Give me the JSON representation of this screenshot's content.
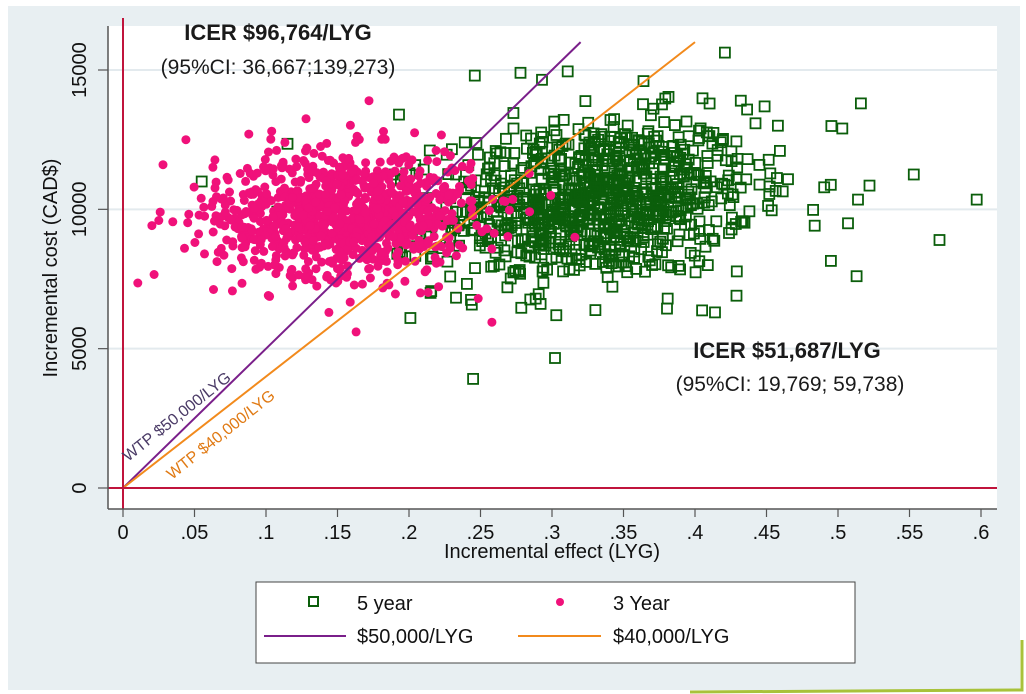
{
  "chart_data": {
    "type": "scatter",
    "title": "",
    "xlabel": "Incremental effect (LYG)",
    "ylabel": "Incremental cost (CAD$)",
    "xlim": [
      -0.01,
      0.61
    ],
    "ylim": [
      -800,
      16300
    ],
    "x_ticks": [
      0,
      0.05,
      0.1,
      0.15,
      0.2,
      0.25,
      0.3,
      0.35,
      0.4,
      0.45,
      0.5,
      0.55,
      0.6
    ],
    "x_tick_labels": [
      "0",
      ".05",
      ".1",
      ".15",
      ".2",
      ".25",
      ".3",
      ".35",
      ".4",
      ".45",
      ".5",
      ".55",
      ".6"
    ],
    "y_ticks": [
      0,
      5000,
      10000,
      15000
    ],
    "y_tick_labels": [
      "0",
      "5000",
      "10000",
      "15000"
    ],
    "grid": "horizontal",
    "reference_lines": {
      "x0": 0,
      "y0": 0,
      "color": "#c0143c"
    },
    "colors": {
      "five_year": "#0b5e0b",
      "three_year": "#f0117a",
      "wtp50": "#7a1f8a",
      "wtp40": "#f28a1c",
      "outer_bg": "#e8eff2",
      "plot_bg": "#ffffff",
      "axis": "#555555",
      "footer_accent": "#a8c23a"
    },
    "series": [
      {
        "name": "5 year",
        "marker": "hollow-square",
        "distribution": {
          "mean_x": 0.33,
          "mean_y": 10300,
          "sd_x": 0.055,
          "sd_y": 1450,
          "corr": 0.18,
          "n": 1000
        },
        "outliers": [
          {
            "x": 0.597,
            "y": 10350
          },
          {
            "x": 0.571,
            "y": 8900
          },
          {
            "x": 0.553,
            "y": 11250
          },
          {
            "x": 0.522,
            "y": 10850
          },
          {
            "x": 0.516,
            "y": 13800
          },
          {
            "x": 0.514,
            "y": 10350
          },
          {
            "x": 0.507,
            "y": 9500
          },
          {
            "x": 0.503,
            "y": 12900
          },
          {
            "x": 0.495,
            "y": 8150
          },
          {
            "x": 0.513,
            "y": 7600
          },
          {
            "x": 0.458,
            "y": 13000
          },
          {
            "x": 0.432,
            "y": 13900
          },
          {
            "x": 0.429,
            "y": 6900
          },
          {
            "x": 0.414,
            "y": 6300
          },
          {
            "x": 0.303,
            "y": 6200
          },
          {
            "x": 0.278,
            "y": 14900
          },
          {
            "x": 0.293,
            "y": 14650
          },
          {
            "x": 0.311,
            "y": 14950
          },
          {
            "x": 0.246,
            "y": 14800
          },
          {
            "x": 0.201,
            "y": 6100
          },
          {
            "x": 0.055,
            "y": 11000
          },
          {
            "x": 0.115,
            "y": 12350
          },
          {
            "x": 0.193,
            "y": 13400
          },
          {
            "x": 0.364,
            "y": 14600
          }
        ]
      },
      {
        "name": "3 Year",
        "marker": "filled-circle",
        "distribution": {
          "mean_x": 0.155,
          "mean_y": 9850,
          "sd_x": 0.045,
          "sd_y": 1100,
          "corr": 0.05,
          "n": 1000
        },
        "outliers": [
          {
            "x": 0.172,
            "y": 13900
          },
          {
            "x": 0.128,
            "y": 13250
          },
          {
            "x": 0.028,
            "y": 11600
          },
          {
            "x": 0.044,
            "y": 12500
          },
          {
            "x": 0.088,
            "y": 12700
          },
          {
            "x": 0.025,
            "y": 9600
          },
          {
            "x": 0.026,
            "y": 9900
          },
          {
            "x": 0.043,
            "y": 8600
          },
          {
            "x": 0.057,
            "y": 8400
          },
          {
            "x": 0.144,
            "y": 6300
          },
          {
            "x": 0.163,
            "y": 5600
          },
          {
            "x": 0.258,
            "y": 5950
          },
          {
            "x": 0.316,
            "y": 9000
          },
          {
            "x": 0.208,
            "y": 7000
          }
        ]
      }
    ],
    "lines": [
      {
        "name": "$50,000/LYG",
        "slope": 50000,
        "x_range": [
          0,
          0.32
        ],
        "label": "WTP $50,000/LYG"
      },
      {
        "name": "$40,000/LYG",
        "slope": 40000,
        "x_range": [
          0,
          0.4
        ],
        "label": "WTP $40,000/LYG"
      }
    ],
    "annotations": [
      {
        "id": "icer3",
        "title": "ICER $96,764/LYG",
        "ci": "(95%CI: 36,667;139,273)"
      },
      {
        "id": "icer5",
        "title": "ICER $51,687/LYG",
        "ci": "(95%CI: 19,769; 59,738)"
      }
    ],
    "legend": {
      "placement": "bottom",
      "entries": [
        {
          "label": "5 year",
          "symbol": "hollow-square"
        },
        {
          "label": "3 Year",
          "symbol": "filled-circle"
        },
        {
          "label": "$50,000/LYG",
          "symbol": "purple-line"
        },
        {
          "label": "$40,000/LYG",
          "symbol": "orange-line"
        }
      ]
    }
  }
}
